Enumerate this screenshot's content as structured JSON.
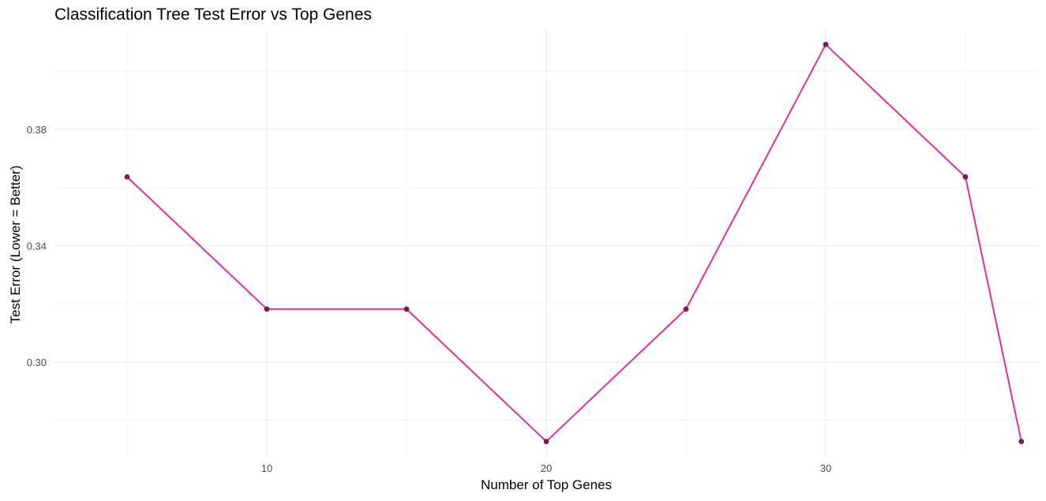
{
  "chart_data": {
    "type": "line",
    "title": "Classification Tree Test Error vs Top Genes",
    "xlabel": "Number of Top Genes",
    "ylabel": "Test Error (Lower = Better)",
    "x": [
      5,
      10,
      15,
      20,
      25,
      30,
      35,
      37
    ],
    "series": [
      {
        "values": [
          0.3636,
          0.3182,
          0.3182,
          0.2727,
          0.3182,
          0.4091,
          0.3636,
          0.2727
        ]
      }
    ],
    "xlim": [
      2.4,
      37.6
    ],
    "ylim": [
      0.2677,
      0.4141
    ],
    "x_ticks": [
      10,
      20,
      30
    ],
    "x_minor": [
      5,
      15,
      25,
      35
    ],
    "y_ticks": [
      0.3,
      0.34,
      0.38
    ],
    "y_tick_labels": [
      "0.30",
      "0.34",
      "0.38"
    ],
    "y_minor": [
      0.28,
      0.32,
      0.36,
      0.4
    ],
    "grid": true,
    "line_color": "#e0309a",
    "point_color": "#7a1c4e"
  }
}
